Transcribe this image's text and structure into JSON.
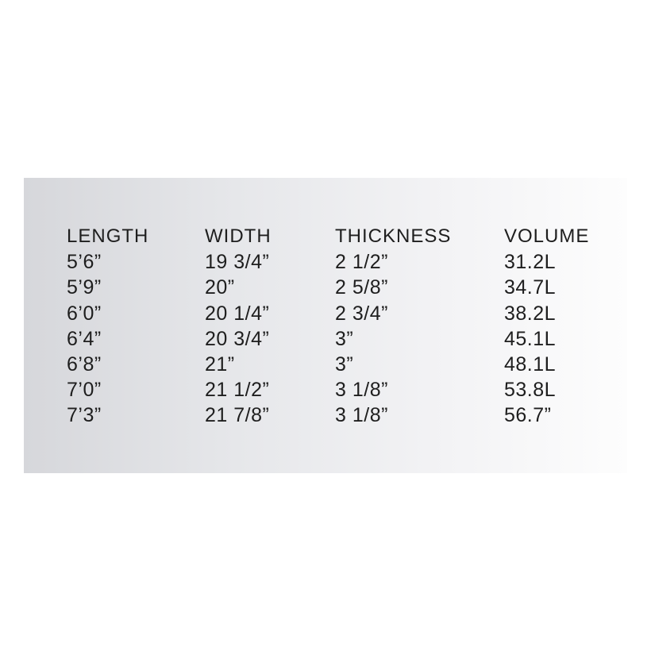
{
  "table": {
    "headers": [
      "LENGTH",
      "WIDTH",
      "THICKNESS",
      "VOLUME"
    ],
    "rows": [
      [
        "5’6”",
        "19 3/4”",
        "2 1/2”",
        "31.2L"
      ],
      [
        "5’9”",
        "20”",
        "2 5/8”",
        "34.7L"
      ],
      [
        "6’0”",
        "20 1/4”",
        "2 3/4”",
        "38.2L"
      ],
      [
        "6’4”",
        "20 3/4”",
        "3”",
        "45.1L"
      ],
      [
        "6’8”",
        "21”",
        "3”",
        "48.1L"
      ],
      [
        "7’0”",
        "21 1/2”",
        "3 1/8”",
        "53.8L"
      ],
      [
        "7’3”",
        "21 7/8”",
        "3 1/8”",
        "56.7”"
      ]
    ]
  }
}
